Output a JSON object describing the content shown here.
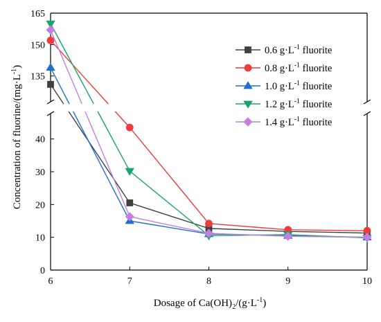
{
  "chart_data": {
    "type": "line",
    "xlabel_main": "Dosage of Ca(OH)",
    "xlabel_sub": "2",
    "xlabel_tail": "/(g·L",
    "xlabel_sup": "-1",
    "xlabel_close": ")",
    "ylabel_main": "Concentration of fluorine/(mg·L",
    "ylabel_sup": "-1",
    "ylabel_close": ")",
    "x": [
      6,
      7,
      8,
      9,
      10
    ],
    "x_ticks": [
      "6",
      "7",
      "8",
      "9",
      "10"
    ],
    "y_ticks_lower": [
      "0",
      "10",
      "20",
      "30",
      "40"
    ],
    "y_ticks_upper": [
      "135",
      "150",
      "165"
    ],
    "ylim_lower": [
      0,
      45
    ],
    "ylim_upper": [
      124,
      165
    ],
    "axis_break": true,
    "grid": false,
    "legend_position": "top-right",
    "series": [
      {
        "name_pre": "0.6 g·L",
        "name_sup": "-1",
        "name_post": " fluorite",
        "color": "#404040",
        "marker": "square",
        "values": [
          131,
          20.5,
          12.7,
          11.8,
          11.3
        ]
      },
      {
        "name_pre": "0.8 g·L",
        "name_sup": "-1",
        "name_post": " fluorite",
        "color": "#ee3b3b",
        "marker": "circle",
        "values": [
          152,
          43.5,
          14.2,
          12.3,
          12.0
        ]
      },
      {
        "name_pre": "1.0 g·L",
        "name_sup": "-1",
        "name_post": " fluorite",
        "color": "#1f6fd1",
        "marker": "triangle-up",
        "values": [
          139,
          15.0,
          11.0,
          10.5,
          10.0
        ]
      },
      {
        "name_pre": "1.2 g·L",
        "name_sup": "-1",
        "name_post": " fluorite",
        "color": "#1aa36b",
        "marker": "triangle-down",
        "values": [
          160,
          30.2,
          10.5,
          10.8,
          9.8
        ]
      },
      {
        "name_pre": "1.4 g·L",
        "name_sup": "-1",
        "name_post": " fluorite",
        "color": "#c17fe0",
        "marker": "diamond",
        "values": [
          157,
          16.3,
          11.2,
          10.3,
          10.0
        ]
      }
    ]
  }
}
